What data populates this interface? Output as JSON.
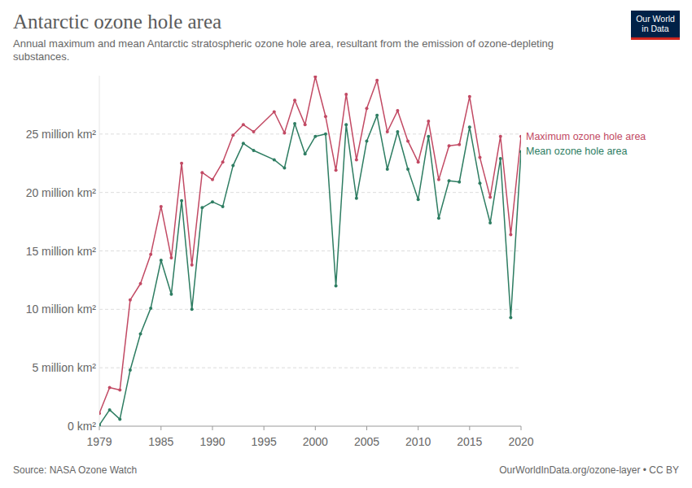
{
  "chart_data": {
    "type": "line",
    "title": "Antarctic ozone hole area",
    "subtitle": "Annual maximum and mean Antarctic stratospheric ozone hole area, resultant from the emission of ozone-depleting substances.",
    "source": "Source: NASA Ozone Watch",
    "credit": "OurWorldInData.org/ozone-layer • CC BY",
    "logo": [
      "Our World",
      "in Data"
    ],
    "x": [
      1979,
      1980,
      1981,
      1982,
      1983,
      1984,
      1985,
      1986,
      1987,
      1988,
      1989,
      1990,
      1991,
      1992,
      1993,
      1994,
      1996,
      1997,
      1998,
      1999,
      2000,
      2001,
      2002,
      2003,
      2004,
      2005,
      2006,
      2007,
      2008,
      2009,
      2010,
      2011,
      2012,
      2013,
      2014,
      2015,
      2016,
      2017,
      2018,
      2019,
      2020
    ],
    "series": [
      {
        "name": "Maximum ozone hole area",
        "color": "#c24a64",
        "marker": "circle",
        "line_style": "solid",
        "values": [
          1.1,
          3.3,
          3.1,
          10.8,
          12.2,
          14.7,
          18.8,
          14.4,
          22.5,
          13.8,
          21.7,
          21.1,
          22.6,
          24.9,
          25.8,
          25.2,
          26.9,
          25.1,
          27.9,
          25.8,
          29.9,
          26.5,
          21.9,
          28.4,
          22.8,
          27.2,
          29.6,
          25.2,
          27.0,
          24.4,
          22.6,
          26.1,
          21.1,
          24.0,
          24.1,
          28.2,
          23.0,
          19.6,
          24.8,
          16.4,
          24.8
        ]
      },
      {
        "name": "Mean ozone hole area",
        "color": "#2e7d62",
        "marker": "circle",
        "line_style": "solid",
        "values": [
          0.1,
          1.4,
          0.6,
          4.8,
          7.9,
          10.1,
          14.2,
          11.3,
          19.3,
          10.0,
          18.7,
          19.2,
          18.8,
          22.3,
          24.2,
          23.6,
          22.8,
          22.1,
          25.9,
          23.3,
          24.8,
          25.0,
          12.0,
          25.8,
          19.5,
          24.4,
          26.6,
          22.0,
          25.2,
          22.0,
          19.4,
          24.8,
          17.8,
          21.0,
          20.9,
          25.6,
          20.8,
          17.4,
          22.9,
          9.3,
          23.5
        ]
      }
    ],
    "xlim": [
      1979,
      2020
    ],
    "xticks": [
      1979,
      1985,
      1990,
      1995,
      2000,
      2005,
      2010,
      2015,
      2020
    ],
    "ylim": [
      0,
      30
    ],
    "yticks": [
      {
        "value": 0,
        "label": "0 km²"
      },
      {
        "value": 5,
        "label": "5 million km²"
      },
      {
        "value": 10,
        "label": "10 million km²"
      },
      {
        "value": 15,
        "label": "15 million km²"
      },
      {
        "value": 20,
        "label": "20 million km²"
      },
      {
        "value": 25,
        "label": "25 million km²"
      }
    ],
    "grid": true,
    "legend": "right"
  }
}
